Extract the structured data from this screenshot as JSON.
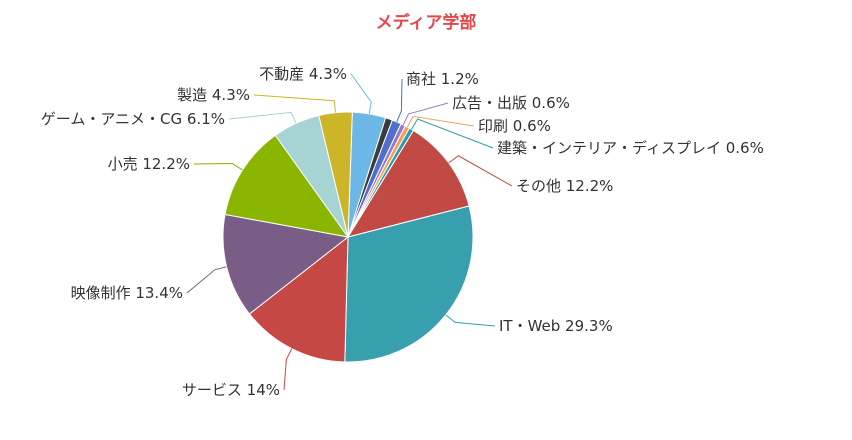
{
  "chart_data": {
    "type": "pie",
    "title": "メディア学部",
    "slices": [
      {
        "label": "不動産",
        "value": 4.3,
        "display": "不動産 4.3%",
        "color": "#6cb7e6"
      },
      {
        "label": "",
        "value": 0.9,
        "display": "",
        "color": "#3a3a3a"
      },
      {
        "label": "商社",
        "value": 1.2,
        "display": "商社 1.2%",
        "color": "#4f6fcf"
      },
      {
        "label": "広告・出版",
        "value": 0.6,
        "display": "広告・出版 0.6%",
        "color": "#9a78c8"
      },
      {
        "label": "印刷",
        "value": 0.6,
        "display": "印刷 0.6%",
        "color": "#f0a25a"
      },
      {
        "label": "建築・インテリア・ディスプレイ",
        "value": 0.6,
        "display": "建築・インテリア・ディスプレイ 0.6%",
        "color": "#2f9aa8"
      },
      {
        "label": "その他",
        "value": 12.2,
        "display": "その他 12.2%",
        "color": "#c24a45"
      },
      {
        "label": "IT・Web",
        "value": 29.3,
        "display": "IT・Web 29.3%",
        "color": "#379fae"
      },
      {
        "label": "サービス",
        "value": 14,
        "display": "サービス 14%",
        "color": "#c54844"
      },
      {
        "label": "映像制作",
        "value": 13.4,
        "display": "映像制作 13.4%",
        "color": "#7a5d87"
      },
      {
        "label": "小売",
        "value": 12.2,
        "display": "小売 12.2%",
        "color": "#8ab500"
      },
      {
        "label": "ゲーム・アニメ・CG",
        "value": 6.1,
        "display": "ゲーム・アニメ・CG 6.1%",
        "color": "#a6d3d3"
      },
      {
        "label": "製造",
        "value": 4.3,
        "display": "製造 4.3%",
        "color": "#cdb52a"
      }
    ]
  }
}
